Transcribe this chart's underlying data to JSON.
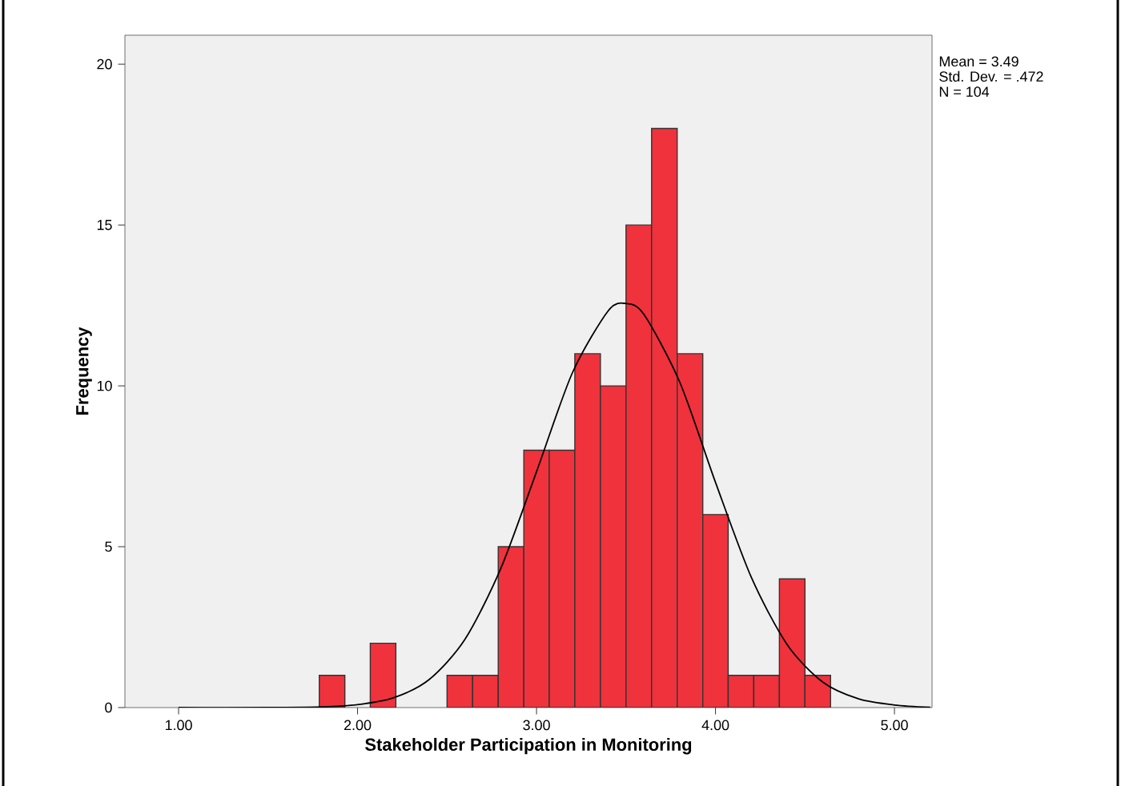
{
  "chart_data": {
    "type": "histogram",
    "xlabel": "Stakeholder Participation in Monitoring",
    "ylabel": "Frequency",
    "bins": [
      1.786,
      1.929,
      2.071,
      2.214,
      2.357,
      2.5,
      2.643,
      2.786,
      2.929,
      3.071,
      3.214,
      3.357,
      3.5,
      3.643,
      3.786,
      3.929,
      4.071,
      4.214,
      4.357,
      4.5,
      4.643
    ],
    "values": [
      1,
      0,
      2,
      0,
      0,
      1,
      1,
      5,
      8,
      8,
      11,
      10,
      15,
      18,
      11,
      6,
      1,
      1,
      4,
      1
    ],
    "color": "#f0323c",
    "series": [
      {
        "type": "line",
        "color": "#000000",
        "x": [
          1.0,
          1.5,
          1.8,
          2.0,
          2.2,
          2.4,
          2.6,
          2.8,
          3.0,
          3.2,
          3.4,
          3.5,
          3.6,
          3.8,
          4.0,
          4.2,
          4.4,
          4.6,
          4.8,
          5.0,
          5.2
        ],
        "values": [
          0,
          0,
          0.02,
          0.09,
          0.3,
          0.87,
          2.12,
          4.32,
          7.33,
          10.4,
          12.33,
          12.56,
          12.22,
          10.12,
          7.0,
          4.05,
          1.96,
          0.79,
          0.27,
          0.08,
          0.01
        ]
      }
    ],
    "xlim": [
      0.7,
      5.21
    ],
    "ylim": [
      0,
      20.9
    ],
    "xticks": [
      {
        "value": 1,
        "label": "1.00"
      },
      {
        "value": 2,
        "label": "2.00"
      },
      {
        "value": 3,
        "label": "3.00"
      },
      {
        "value": 4,
        "label": "4.00"
      },
      {
        "value": 5,
        "label": "5.00"
      }
    ],
    "yticks": [
      0,
      5,
      10,
      15,
      20
    ],
    "grid": false,
    "annotations": [
      "Mean = 3.49",
      "Std. Dev. = .472",
      "N = 104"
    ]
  }
}
